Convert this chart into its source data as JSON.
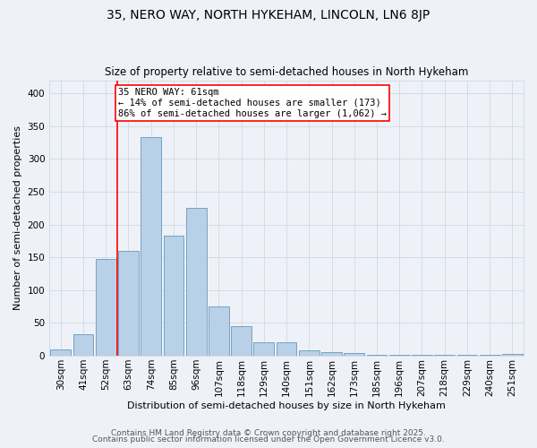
{
  "title": "35, NERO WAY, NORTH HYKEHAM, LINCOLN, LN6 8JP",
  "subtitle": "Size of property relative to semi-detached houses in North Hykeham",
  "xlabel": "Distribution of semi-detached houses by size in North Hykeham",
  "ylabel": "Number of semi-detached properties",
  "categories": [
    "30sqm",
    "41sqm",
    "52sqm",
    "63sqm",
    "74sqm",
    "85sqm",
    "96sqm",
    "107sqm",
    "118sqm",
    "129sqm",
    "140sqm",
    "151sqm",
    "162sqm",
    "173sqm",
    "185sqm",
    "196sqm",
    "207sqm",
    "218sqm",
    "229sqm",
    "240sqm",
    "251sqm"
  ],
  "values": [
    10,
    33,
    148,
    160,
    333,
    183,
    225,
    75,
    45,
    20,
    20,
    8,
    6,
    4,
    2,
    1,
    1,
    1,
    1,
    1,
    3
  ],
  "bar_color": "#b8d0e8",
  "bar_edge_color": "#6699bb",
  "background_color": "#eef2f8",
  "grid_color": "#d0d8e0",
  "vline_color": "red",
  "vline_pos": 2.5,
  "annotation_text": "35 NERO WAY: 61sqm\n← 14% of semi-detached houses are smaller (173)\n86% of semi-detached houses are larger (1,062) →",
  "annotation_box_facecolor": "white",
  "annotation_box_edgecolor": "red",
  "footnote1": "Contains HM Land Registry data © Crown copyright and database right 2025.",
  "footnote2": "Contains public sector information licensed under the Open Government Licence v3.0.",
  "ylim": [
    0,
    420
  ],
  "yticks": [
    0,
    50,
    100,
    150,
    200,
    250,
    300,
    350,
    400
  ],
  "title_fontsize": 10,
  "subtitle_fontsize": 8.5,
  "xlabel_fontsize": 8,
  "ylabel_fontsize": 8,
  "tick_fontsize": 7.5,
  "annotation_fontsize": 7.5,
  "footnote_fontsize": 6.5
}
